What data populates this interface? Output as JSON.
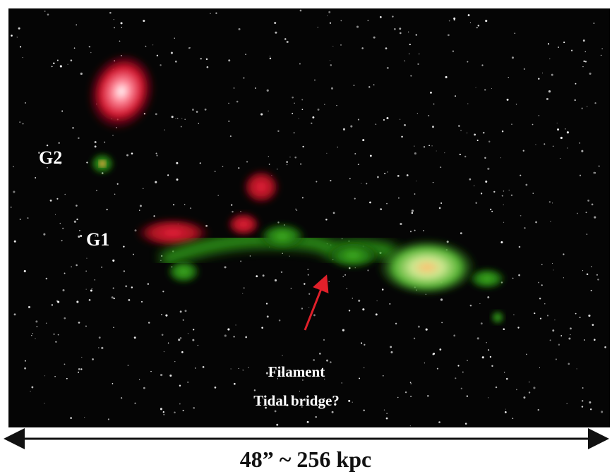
{
  "image": {
    "labels": {
      "g2": "G2",
      "g1": "G1",
      "filament": "Filament",
      "question": "Tidal bridge?"
    }
  },
  "scale_bar": {
    "label": "48” ~ 256 kpc"
  }
}
